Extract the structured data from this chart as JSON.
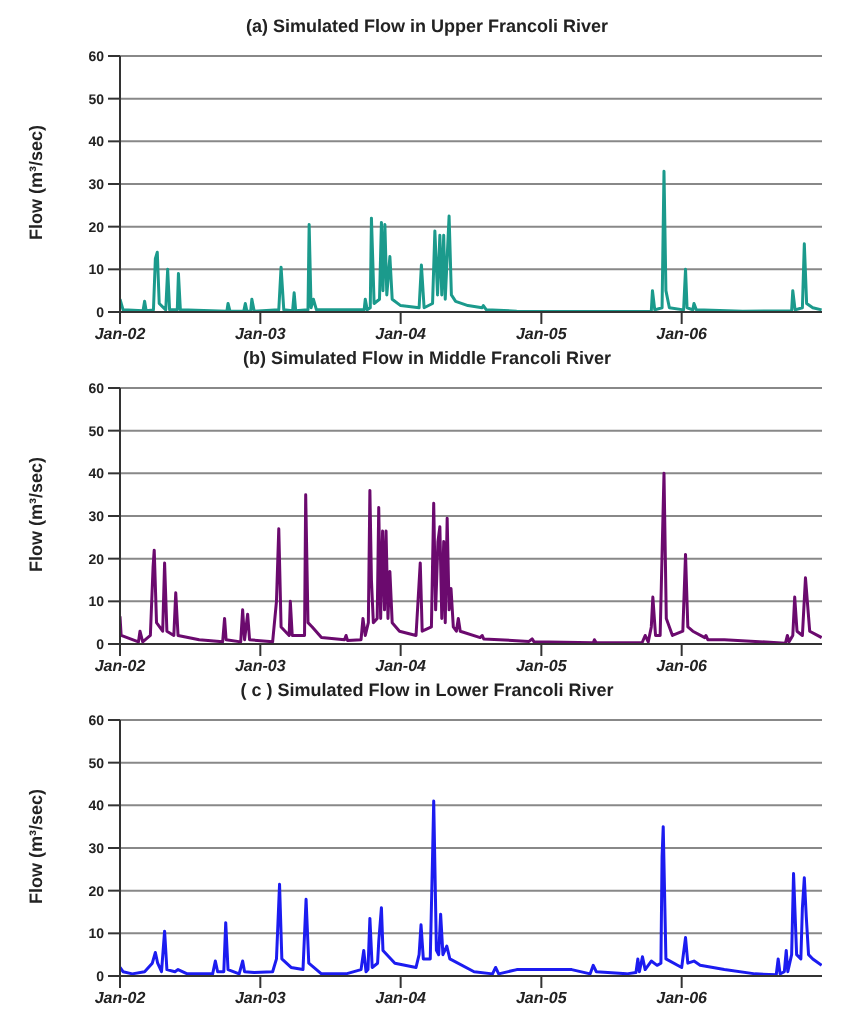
{
  "chart_data": [
    {
      "type": "line",
      "title": "(a) Simulated Flow in Upper Francoli River",
      "ylabel": "Flow (m³/sec)",
      "color": "#1b9a8c",
      "grid": "y",
      "xlim": [
        "2002-01-01",
        "2007-01-01"
      ],
      "ylim": [
        0,
        60
      ],
      "yticks": [
        0,
        10,
        20,
        30,
        40,
        50,
        60
      ],
      "xticks": [
        {
          "value": "2002-01-01",
          "label": "Jan-02"
        },
        {
          "value": "2003-01-01",
          "label": "Jan-03"
        },
        {
          "value": "2004-01-01",
          "label": "Jan-04"
        },
        {
          "value": "2005-01-01",
          "label": "Jan-05"
        },
        {
          "value": "2006-01-01",
          "label": "Jan-06"
        }
      ],
      "x": [
        "2002-01-01",
        "2002-01-09",
        "2002-03-02",
        "2002-03-06",
        "2002-03-10",
        "2002-03-29",
        "2002-04-03",
        "2002-04-08",
        "2002-04-13",
        "2002-04-30",
        "2002-05-05",
        "2002-05-10",
        "2002-05-30",
        "2002-06-02",
        "2002-06-07",
        "2002-10-06",
        "2002-10-09",
        "2002-10-14",
        "2002-11-19",
        "2002-11-23",
        "2002-11-27",
        "2002-12-07",
        "2002-12-10",
        "2002-12-16",
        "2003-02-18",
        "2003-02-24",
        "2003-03-03",
        "2003-03-26",
        "2003-03-30",
        "2003-04-03",
        "2003-05-05",
        "2003-05-08",
        "2003-05-13",
        "2003-05-19",
        "2003-05-27",
        "2003-09-28",
        "2003-10-01",
        "2003-10-06",
        "2003-10-14",
        "2003-10-17",
        "2003-10-24",
        "2003-11-07",
        "2003-11-12",
        "2003-11-16",
        "2003-11-21",
        "2003-11-26",
        "2003-12-04",
        "2003-12-10",
        "2004-01-01",
        "2004-02-18",
        "2004-02-24",
        "2004-03-02",
        "2004-03-24",
        "2004-03-30",
        "2004-04-06",
        "2004-04-12",
        "2004-04-17",
        "2004-04-22",
        "2004-04-26",
        "2004-05-06",
        "2004-05-12",
        "2004-05-23",
        "2004-06-24",
        "2004-07-31",
        "2004-08-03",
        "2004-08-11",
        "2004-10-29",
        "2005-01-01",
        "2005-10-14",
        "2005-10-17",
        "2005-10-23",
        "2005-11-11",
        "2005-11-16",
        "2005-11-21",
        "2005-11-30",
        "2006-01-06",
        "2006-01-11",
        "2006-01-15",
        "2006-01-30",
        "2006-02-02",
        "2006-02-08",
        "2006-06-09",
        "2006-10-14",
        "2006-10-17",
        "2006-10-23",
        "2006-11-11",
        "2006-11-16",
        "2006-11-22",
        "2006-12-08",
        "2006-12-31"
      ],
      "values": [
        3,
        0.5,
        0.3,
        2.5,
        0.3,
        0.5,
        12.5,
        14,
        2,
        0.5,
        10,
        0.5,
        0.5,
        9,
        0.5,
        0.2,
        2,
        0.2,
        0.2,
        2,
        0.2,
        0.2,
        3,
        0.2,
        0.5,
        10.5,
        0.5,
        0.3,
        4.5,
        0.3,
        0.5,
        20.5,
        1,
        3,
        0.5,
        0.5,
        3,
        0.5,
        1,
        22,
        2,
        3,
        21,
        5,
        20.5,
        4,
        13,
        3,
        1.5,
        1,
        11,
        1,
        2,
        19,
        4,
        18,
        4,
        18,
        3,
        22.5,
        4,
        2.5,
        1.5,
        1,
        1.5,
        0.5,
        0.2,
        0.1,
        0.2,
        5,
        0.5,
        1,
        33,
        5,
        1,
        0.5,
        10,
        1,
        0.5,
        2,
        0.5,
        0.2,
        0.3,
        5,
        0.5,
        1,
        16,
        2,
        1,
        0.5
      ]
    },
    {
      "type": "line",
      "title": "(b) Simulated Flow in Middle Francoli River",
      "ylabel": "Flow (m³/sec)",
      "color": "#6b0a6e",
      "grid": "y",
      "xlim": [
        "2002-01-01",
        "2007-01-01"
      ],
      "ylim": [
        0,
        60
      ],
      "yticks": [
        0,
        10,
        20,
        30,
        40,
        50,
        60
      ],
      "xticks": [
        {
          "value": "2002-01-01",
          "label": "Jan-02"
        },
        {
          "value": "2003-01-01",
          "label": "Jan-03"
        },
        {
          "value": "2004-01-01",
          "label": "Jan-04"
        },
        {
          "value": "2005-01-01",
          "label": "Jan-05"
        },
        {
          "value": "2006-01-01",
          "label": "Jan-06"
        }
      ],
      "x": [
        "2002-01-01",
        "2002-01-04",
        "2002-02-18",
        "2002-02-22",
        "2002-03-01",
        "2002-03-21",
        "2002-03-28",
        "2002-03-31",
        "2002-04-06",
        "2002-04-22",
        "2002-04-27",
        "2002-05-03",
        "2002-05-21",
        "2002-05-26",
        "2002-06-01",
        "2002-07-26",
        "2002-09-25",
        "2002-09-30",
        "2002-10-04",
        "2002-11-11",
        "2002-11-16",
        "2002-11-21",
        "2002-11-29",
        "2002-12-04",
        "2003-02-02",
        "2003-02-12",
        "2003-02-18",
        "2003-02-24",
        "2003-03-17",
        "2003-03-20",
        "2003-03-25",
        "2003-04-26",
        "2003-04-29",
        "2003-05-05",
        "2003-05-16",
        "2003-06-09",
        "2003-08-08",
        "2003-08-12",
        "2003-08-16",
        "2003-09-20",
        "2003-09-25",
        "2003-10-01",
        "2003-10-09",
        "2003-10-13",
        "2003-10-17",
        "2003-10-22",
        "2003-11-01",
        "2003-11-05",
        "2003-11-10",
        "2003-11-15",
        "2003-11-20",
        "2003-11-24",
        "2003-11-29",
        "2003-12-04",
        "2003-12-10",
        "2003-12-29",
        "2004-02-10",
        "2004-02-21",
        "2004-02-26",
        "2004-03-21",
        "2004-03-27",
        "2004-04-01",
        "2004-04-07",
        "2004-04-12",
        "2004-04-17",
        "2004-04-22",
        "2004-04-26",
        "2004-05-01",
        "2004-05-06",
        "2004-05-11",
        "2004-05-17",
        "2004-05-25",
        "2004-05-30",
        "2004-06-04",
        "2004-07-26",
        "2004-07-31",
        "2004-08-04",
        "2004-11-30",
        "2004-12-08",
        "2004-12-13",
        "2005-05-16",
        "2005-05-19",
        "2005-05-24",
        "2005-09-20",
        "2005-09-28",
        "2005-10-06",
        "2005-10-14",
        "2005-10-18",
        "2005-10-25",
        "2005-11-06",
        "2005-11-16",
        "2005-11-22",
        "2005-12-08",
        "2006-01-04",
        "2006-01-11",
        "2006-01-17",
        "2006-01-30",
        "2006-03-02",
        "2006-03-05",
        "2006-03-10",
        "2006-04-22",
        "2006-09-28",
        "2006-10-03",
        "2006-10-07",
        "2006-10-17",
        "2006-10-22",
        "2006-10-28",
        "2006-11-11",
        "2006-11-19",
        "2006-11-30",
        "2006-12-31"
      ],
      "values": [
        6.5,
        2,
        0.5,
        3,
        0.5,
        2,
        18,
        22,
        5,
        3,
        19,
        3,
        2,
        12,
        2,
        1,
        0.5,
        6,
        1,
        0.5,
        8,
        1,
        7,
        1,
        0.5,
        10,
        27,
        4,
        2,
        10,
        2,
        2,
        35,
        5,
        4,
        1.5,
        1,
        2,
        0.8,
        1,
        6,
        2,
        5,
        36,
        15,
        5,
        6,
        32,
        6,
        26.5,
        8,
        26.5,
        6,
        17,
        5,
        3,
        2,
        19,
        3,
        4,
        33,
        8,
        24,
        27.5,
        6,
        24,
        5,
        29.5,
        8,
        13,
        4,
        3,
        6,
        3,
        1.5,
        2,
        1.2,
        0.6,
        1.2,
        0.5,
        0.3,
        1,
        0.3,
        0.3,
        2,
        0.5,
        4,
        11,
        2,
        2,
        40,
        6,
        2,
        3,
        21,
        4,
        3,
        1.5,
        2,
        1,
        1,
        0.2,
        2,
        0.5,
        2,
        11,
        3,
        2,
        15.5,
        3,
        1.5
      ]
    },
    {
      "type": "line",
      "title": "( c ) Simulated Flow in Lower Francoli River",
      "ylabel": "Flow (m³/sec)",
      "color": "#1c1cf0",
      "grid": "y",
      "xlim": [
        "2002-01-01",
        "2007-01-01"
      ],
      "ylim": [
        0,
        60
      ],
      "yticks": [
        0,
        10,
        20,
        30,
        40,
        50,
        60
      ],
      "xticks": [
        {
          "value": "2002-01-01",
          "label": "Jan-02"
        },
        {
          "value": "2003-01-01",
          "label": "Jan-03"
        },
        {
          "value": "2004-01-01",
          "label": "Jan-04"
        },
        {
          "value": "2005-01-01",
          "label": "Jan-05"
        },
        {
          "value": "2006-01-01",
          "label": "Jan-06"
        }
      ],
      "x": [
        "2002-01-01",
        "2002-01-09",
        "2002-02-02",
        "2002-03-06",
        "2002-03-26",
        "2002-04-03",
        "2002-04-09",
        "2002-04-19",
        "2002-04-27",
        "2002-05-03",
        "2002-05-24",
        "2002-06-01",
        "2002-06-25",
        "2002-08-30",
        "2002-09-06",
        "2002-09-12",
        "2002-09-28",
        "2002-10-03",
        "2002-10-09",
        "2002-11-07",
        "2002-11-16",
        "2002-11-21",
        "2002-12-16",
        "2003-02-02",
        "2003-02-12",
        "2003-02-20",
        "2003-02-26",
        "2003-03-22",
        "2003-04-22",
        "2003-04-30",
        "2003-05-07",
        "2003-06-09",
        "2003-08-12",
        "2003-09-20",
        "2003-09-27",
        "2003-10-03",
        "2003-10-08",
        "2003-10-13",
        "2003-10-19",
        "2003-11-02",
        "2003-11-05",
        "2003-11-12",
        "2003-11-16",
        "2003-12-17",
        "2004-02-10",
        "2004-02-18",
        "2004-02-23",
        "2004-02-29",
        "2004-03-18",
        "2004-03-24",
        "2004-03-27",
        "2004-04-03",
        "2004-04-09",
        "2004-04-14",
        "2004-04-20",
        "2004-04-30",
        "2004-05-08",
        "2004-07-10",
        "2004-08-27",
        "2004-09-04",
        "2004-09-12",
        "2004-10-29",
        "2005-01-01",
        "2005-03-21",
        "2005-05-08",
        "2005-05-16",
        "2005-05-24",
        "2005-08-11",
        "2005-09-04",
        "2005-09-09",
        "2005-09-13",
        "2005-09-21",
        "2005-09-28",
        "2005-10-14",
        "2005-10-29",
        "2005-11-08",
        "2005-11-11",
        "2005-11-14",
        "2005-11-21",
        "2006-01-01",
        "2006-01-11",
        "2006-01-17",
        "2006-02-02",
        "2006-02-18",
        "2006-04-22",
        "2006-07-11",
        "2006-09-04",
        "2006-09-09",
        "2006-09-14",
        "2006-09-25",
        "2006-09-30",
        "2006-10-04",
        "2006-10-14",
        "2006-10-19",
        "2006-10-27",
        "2006-11-07",
        "2006-11-11",
        "2006-11-16",
        "2006-11-21",
        "2006-11-27",
        "2006-12-08",
        "2006-12-31"
      ],
      "values": [
        2,
        1,
        0.5,
        1,
        3,
        5.5,
        3,
        1,
        10.5,
        1.5,
        1,
        1.5,
        0.5,
        0.5,
        3.5,
        1,
        1,
        12.5,
        1.5,
        0.5,
        3.5,
        1,
        0.8,
        1,
        4,
        21.5,
        4,
        2,
        1.5,
        18,
        3,
        0.5,
        0.5,
        1.5,
        6,
        1,
        1.5,
        13.5,
        2,
        3,
        8,
        16,
        6,
        3,
        2,
        5,
        12,
        4,
        4,
        28,
        41,
        6,
        5,
        14.5,
        5,
        7,
        4,
        1,
        0.5,
        2,
        0.5,
        1.5,
        1.5,
        1.5,
        0.5,
        2.5,
        1,
        0.5,
        0.8,
        4,
        1,
        4.5,
        1.5,
        3.5,
        2.5,
        3,
        28,
        35,
        4,
        2,
        9,
        3,
        3.5,
        2.5,
        1.5,
        0.5,
        0.3,
        4,
        0.5,
        1,
        6,
        1,
        5,
        24,
        5,
        4,
        16,
        23,
        14,
        5,
        4,
        2.5
      ]
    }
  ]
}
